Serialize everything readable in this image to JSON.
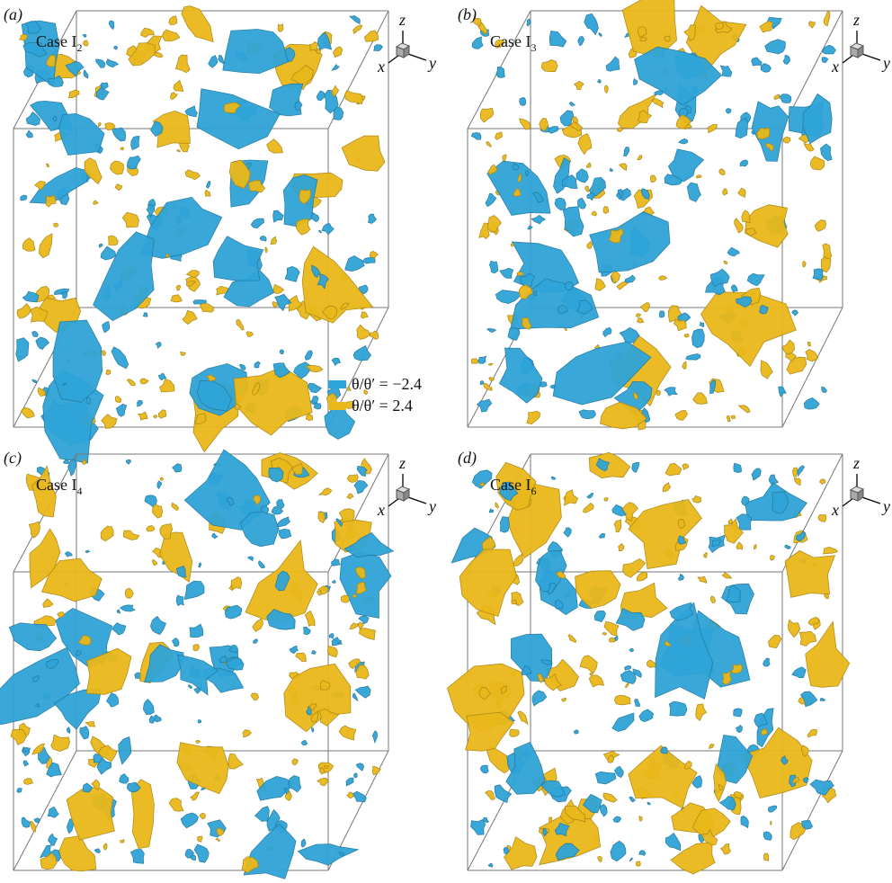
{
  "panels": [
    {
      "label": "(a)",
      "case": {
        "text": "Case I",
        "subscript": "2"
      },
      "axes": {
        "x": "x",
        "y": "y",
        "z": "z"
      }
    },
    {
      "label": "(b)",
      "case": {
        "text": "Case I",
        "subscript": "3"
      },
      "axes": {
        "x": "x",
        "y": "y",
        "z": "z"
      }
    },
    {
      "label": "(c)",
      "case": {
        "text": "Case I",
        "subscript": "4"
      },
      "axes": {
        "x": "x",
        "y": "y",
        "z": "z"
      }
    },
    {
      "label": "(d)",
      "case": {
        "text": "Case I",
        "subscript": "6"
      },
      "axes": {
        "x": "x",
        "y": "y",
        "z": "z"
      }
    }
  ],
  "legend": [
    {
      "label": "θ/θ′ = −2.4",
      "color": "#2fa4d8"
    },
    {
      "label": "θ/θ′ = 2.4",
      "color": "#e9b81a"
    }
  ]
}
